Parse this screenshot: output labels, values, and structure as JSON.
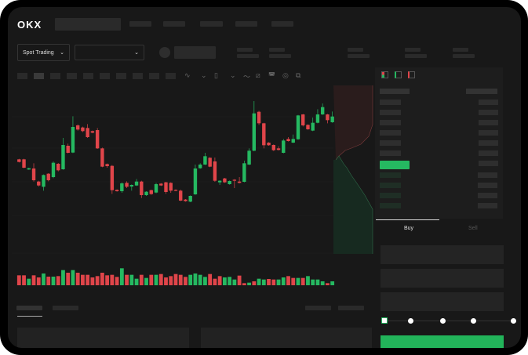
{
  "header": {
    "logo": "OKX",
    "market_type": "Spot Trading",
    "pair_selector": ""
  },
  "order_form": {
    "tabs": [
      "Buy",
      "Sell"
    ],
    "active_tab": "Buy",
    "slider_percent": 0,
    "slider_stops": [
      0,
      25,
      50,
      75,
      100
    ]
  },
  "colors": {
    "up": "#25b961",
    "down": "#e0454a",
    "background": "#181818",
    "buy_button": "#22b45a"
  },
  "toolbar_icons": [
    "indicator-icon",
    "chart-type-icon",
    "timeframe-icon",
    "line-tool-icon",
    "pencil-icon",
    "camera-icon",
    "settings-icon",
    "fullscreen-icon"
  ],
  "orderbook_icons": [
    "both-sides-icon",
    "bids-only-icon",
    "asks-only-icon"
  ],
  "chart_data": {
    "type": "candlestick",
    "candles": [
      [
        190,
        180,
        192,
        178
      ],
      [
        190,
        158,
        192,
        156
      ],
      [
        151,
        156,
        158,
        150
      ],
      [
        155,
        110,
        175,
        105
      ],
      [
        105,
        90,
        108,
        86
      ],
      [
        85,
        130,
        132,
        70
      ],
      [
        135,
        110,
        137,
        106
      ],
      [
        122,
        177,
        182,
        118
      ],
      [
        173,
        148,
        176,
        144
      ],
      [
        152,
        245,
        272,
        150
      ],
      [
        242,
        215,
        250,
        213
      ],
      [
        216,
        314,
        355,
        214
      ],
      [
        320,
        304,
        324,
        300
      ],
      [
        312,
        298,
        315,
        294
      ],
      [
        310,
        275,
        325,
        272
      ],
      [
        298,
        292,
        300,
        290
      ],
      [
        302,
        232,
        310,
        230
      ],
      [
        232,
        162,
        235,
        160
      ],
      [
        172,
        164,
        174,
        158
      ],
      [
        165,
        72,
        168,
        58
      ],
      [
        73,
        68,
        75,
        66
      ],
      [
        68,
        98,
        102,
        62
      ],
      [
        100,
        85,
        106,
        80
      ],
      [
        86,
        92,
        94,
        70
      ],
      [
        90,
        105,
        115,
        88
      ],
      [
        105,
        53,
        108,
        42
      ],
      [
        53,
        66,
        68,
        50
      ],
      [
        72,
        57,
        74,
        54
      ],
      [
        63,
        95,
        100,
        60
      ],
      [
        97,
        90,
        99,
        88
      ],
      [
        102,
        65,
        104,
        58
      ],
      [
        100,
        70,
        102,
        62
      ],
      [
        73,
        70,
        75,
        68
      ],
      [
        70,
        32,
        74,
        30
      ],
      [
        36,
        30,
        38,
        28
      ],
      [
        28,
        50,
        52,
        26
      ],
      [
        56,
        155,
        170,
        54
      ],
      [
        156,
        170,
        175,
        154
      ],
      [
        170,
        202,
        215,
        168
      ],
      [
        196,
        162,
        198,
        160
      ],
      [
        182,
        108,
        197,
        104
      ],
      [
        102,
        108,
        110,
        92
      ],
      [
        117,
        102,
        119,
        100
      ],
      [
        95,
        107,
        109,
        93
      ],
      [
        112,
        108,
        114,
        80
      ],
      [
        105,
        100,
        122,
        98
      ],
      [
        104,
        175,
        185,
        102
      ],
      [
        170,
        223,
        232,
        168
      ],
      [
        223,
        366,
        413,
        221
      ],
      [
        372,
        328,
        376,
        322
      ],
      [
        328,
        244,
        330,
        232
      ],
      [
        254,
        244,
        256,
        242
      ],
      [
        245,
        225,
        247,
        222
      ],
      [
        232,
        226,
        240,
        224
      ],
      [
        215,
        262,
        268,
        213
      ],
      [
        268,
        260,
        275,
        258
      ],
      [
        254,
        268,
        285,
        252
      ],
      [
        267,
        358,
        360,
        265
      ],
      [
        362,
        320,
        364,
        316
      ],
      [
        322,
        305,
        324,
        303
      ],
      [
        300,
        330,
        350,
        298
      ],
      [
        330,
        362,
        382,
        328
      ],
      [
        362,
        390,
        404,
        360
      ],
      [
        362,
        340,
        364,
        328
      ],
      [
        332,
        354,
        373,
        330
      ]
    ],
    "volume": [
      38,
      38,
      25,
      38,
      30,
      45,
      33,
      33,
      35,
      58,
      48,
      58,
      48,
      40,
      40,
      30,
      35,
      48,
      38,
      40,
      32,
      65,
      40,
      40,
      25,
      40,
      28,
      40,
      40,
      43,
      30,
      35,
      43,
      40,
      32,
      40,
      45,
      40,
      32,
      43,
      25,
      35,
      30,
      32,
      22,
      37,
      8,
      10,
      15,
      25,
      22,
      24,
      22,
      22,
      30,
      35,
      28,
      28,
      28,
      35,
      22,
      22,
      15,
      8,
      15
    ],
    "volume_up": [
      0,
      0,
      1,
      0,
      0,
      1,
      0,
      1,
      0,
      1,
      0,
      1,
      0,
      0,
      0,
      0,
      0,
      0,
      0,
      0,
      0,
      1,
      0,
      1,
      1,
      0,
      1,
      0,
      1,
      0,
      0,
      0,
      0,
      0,
      0,
      1,
      1,
      1,
      1,
      0,
      0,
      0,
      1,
      1,
      1,
      0,
      0,
      1,
      0,
      1,
      1,
      0,
      0,
      1,
      1,
      0,
      0,
      1,
      0,
      1,
      1,
      1,
      1,
      0,
      1
    ]
  }
}
